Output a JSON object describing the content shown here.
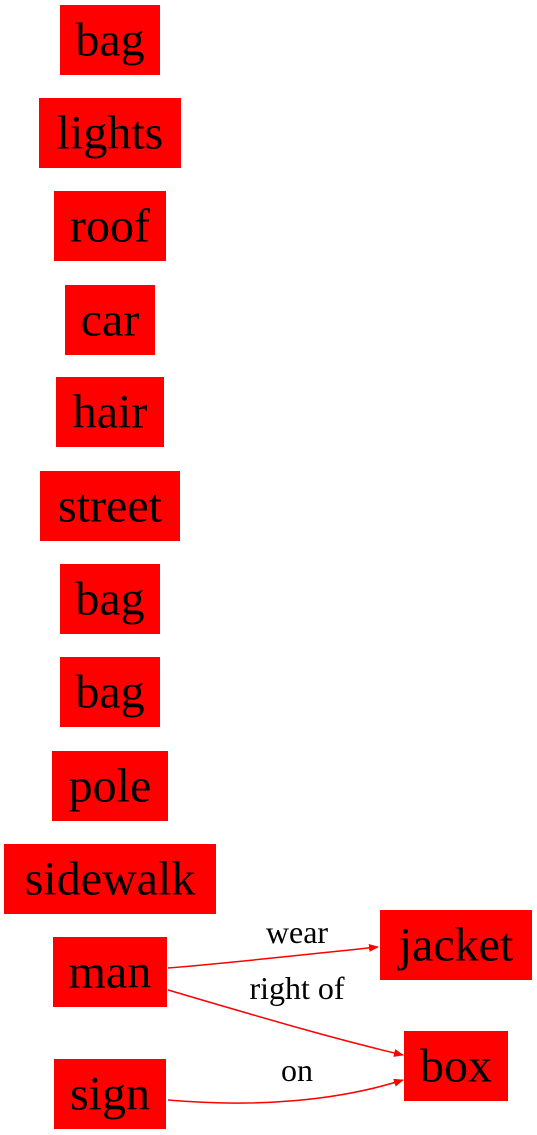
{
  "graph": {
    "node_color": "#ff0000",
    "edge_color": "#ff0000",
    "text_color": "#000000",
    "nodes": [
      {
        "id": "n0",
        "label": "bag"
      },
      {
        "id": "n1",
        "label": "lights"
      },
      {
        "id": "n2",
        "label": "roof"
      },
      {
        "id": "n3",
        "label": "car"
      },
      {
        "id": "n4",
        "label": "hair"
      },
      {
        "id": "n5",
        "label": "street"
      },
      {
        "id": "n6",
        "label": "bag"
      },
      {
        "id": "n7",
        "label": "bag"
      },
      {
        "id": "n8",
        "label": "pole"
      },
      {
        "id": "n9",
        "label": "sidewalk"
      },
      {
        "id": "n10",
        "label": "man"
      },
      {
        "id": "n11",
        "label": "sign"
      },
      {
        "id": "n12",
        "label": "jacket"
      },
      {
        "id": "n13",
        "label": "box"
      }
    ],
    "edges": [
      {
        "id": "e0",
        "from": "n10",
        "to": "n12",
        "label": "wear"
      },
      {
        "id": "e1",
        "from": "n10",
        "to": "n13",
        "label": "right of"
      },
      {
        "id": "e2",
        "from": "n11",
        "to": "n13",
        "label": "on"
      }
    ]
  }
}
